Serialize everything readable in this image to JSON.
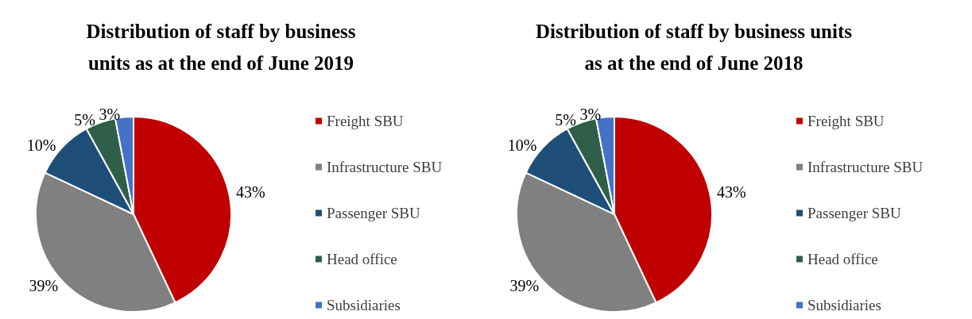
{
  "chart_data": [
    {
      "type": "pie",
      "title": "Distribution of staff by business\nunits as at the end of June 2019",
      "categories": [
        "Freight SBU",
        "Infrastructure SBU",
        "Passenger SBU",
        "Head office",
        "Subsidiaries"
      ],
      "values": [
        43,
        39,
        10,
        5,
        3
      ],
      "value_labels": [
        "43%",
        "39%",
        "10%",
        "5%",
        "3%"
      ],
      "colors": [
        "#c00000",
        "#808080",
        "#1f4e79",
        "#2f5f4a",
        "#4472c4"
      ],
      "legend": "right"
    },
    {
      "type": "pie",
      "title": "Distribution of staff by business units\nas at the end of June 2018",
      "categories": [
        "Freight SBU",
        "Infrastructure SBU",
        "Passenger SBU",
        "Head office",
        "Subsidiaries"
      ],
      "values": [
        43,
        39,
        10,
        5,
        3
      ],
      "value_labels": [
        "43%",
        "39%",
        "10%",
        "5%",
        "3%"
      ],
      "colors": [
        "#c00000",
        "#808080",
        "#1f4e79",
        "#2f5f4a",
        "#4472c4"
      ],
      "legend": "right"
    }
  ]
}
